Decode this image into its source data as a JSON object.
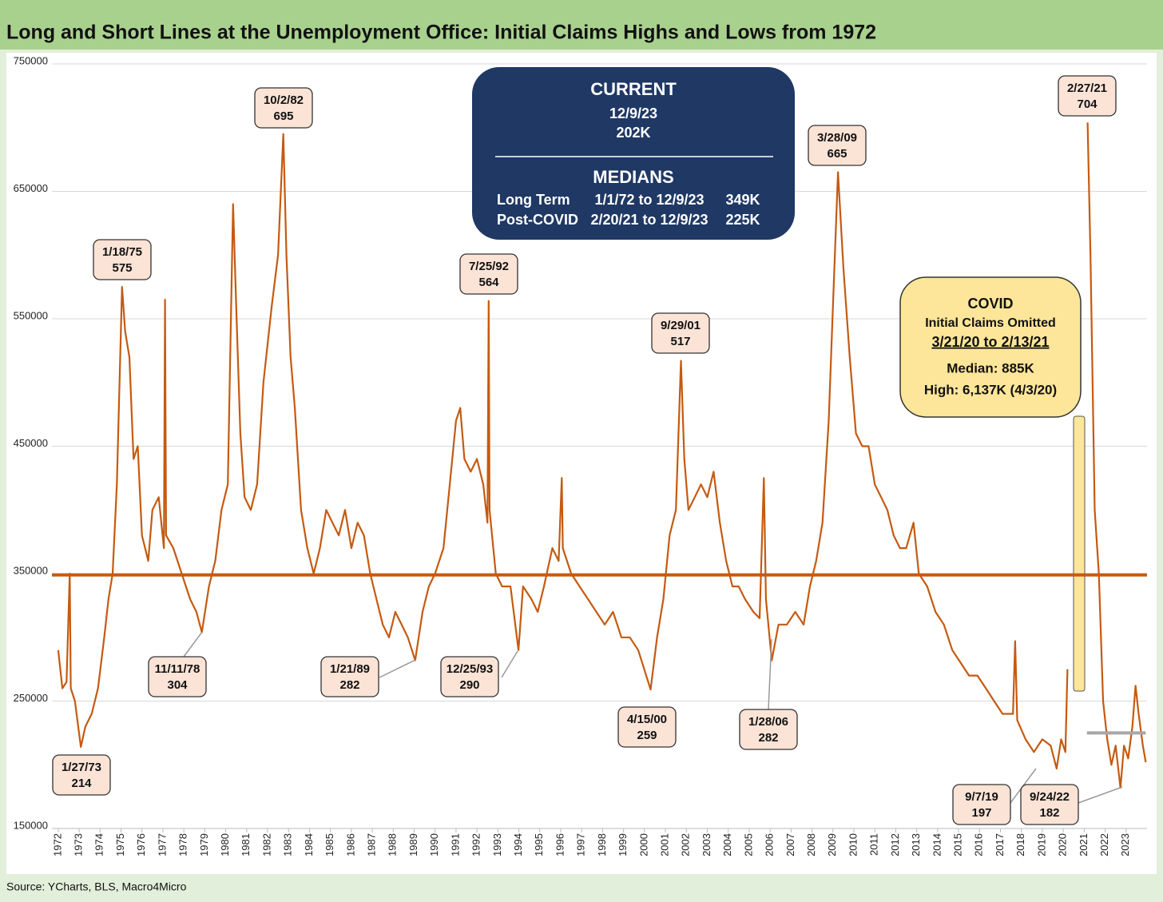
{
  "chart_data": {
    "type": "line",
    "title": "Long and Short Lines at the Unemployment Office: Initial Claims Highs and Lows from 1972",
    "source": "Source: YCharts, BLS, Macro4Micro",
    "xlim": [
      1971.7,
      2024.0
    ],
    "xticks": [
      1972,
      1973,
      1974,
      1975,
      1976,
      1977,
      1978,
      1979,
      1980,
      1981,
      1982,
      1983,
      1984,
      1985,
      1986,
      1987,
      1988,
      1989,
      1990,
      1991,
      1992,
      1993,
      1994,
      1995,
      1996,
      1997,
      1998,
      1999,
      2000,
      2001,
      2002,
      2003,
      2004,
      2005,
      2006,
      2007,
      2008,
      2009,
      2010,
      2011,
      2012,
      2013,
      2014,
      2015,
      2016,
      2017,
      2018,
      2019,
      2020,
      2021,
      2022,
      2023
    ],
    "ylim": [
      150000,
      750000
    ],
    "yticks": [
      150000,
      250000,
      350000,
      450000,
      550000,
      650000,
      750000
    ],
    "grid": true,
    "color": "#c55a11",
    "x": [
      1972.0,
      1972.2,
      1972.4,
      1972.55,
      1972.6,
      1972.8,
      1973.08,
      1973.3,
      1973.6,
      1973.9,
      1974.2,
      1974.4,
      1974.6,
      1974.8,
      1975.05,
      1975.2,
      1975.4,
      1975.6,
      1975.8,
      1976.0,
      1976.3,
      1976.5,
      1976.8,
      1977.05,
      1977.1,
      1977.15,
      1977.5,
      1977.9,
      1978.3,
      1978.6,
      1978.86,
      1979.2,
      1979.5,
      1979.8,
      1980.1,
      1980.35,
      1980.5,
      1980.7,
      1980.9,
      1981.2,
      1981.5,
      1981.8,
      1982.2,
      1982.5,
      1982.75,
      1982.9,
      1983.1,
      1983.3,
      1983.6,
      1983.9,
      1984.2,
      1984.5,
      1984.8,
      1985.1,
      1985.4,
      1985.7,
      1986.0,
      1986.3,
      1986.6,
      1986.9,
      1987.2,
      1987.5,
      1987.8,
      1988.1,
      1988.4,
      1988.7,
      1989.05,
      1989.4,
      1989.7,
      1990.0,
      1990.4,
      1990.7,
      1991.0,
      1991.2,
      1991.4,
      1991.7,
      1992.0,
      1992.3,
      1992.5,
      1992.56,
      1992.6,
      1992.9,
      1993.2,
      1993.6,
      1993.98,
      1994.2,
      1994.6,
      1994.9,
      1995.2,
      1995.6,
      1995.9,
      1996.05,
      1996.1,
      1996.5,
      1996.9,
      1997.3,
      1997.7,
      1998.1,
      1998.5,
      1998.9,
      1999.3,
      1999.7,
      2000.29,
      2000.6,
      2000.9,
      2001.2,
      2001.5,
      2001.74,
      2001.9,
      2002.1,
      2002.4,
      2002.7,
      2003.0,
      2003.3,
      2003.6,
      2003.9,
      2004.2,
      2004.5,
      2004.8,
      2005.2,
      2005.5,
      2005.7,
      2005.8,
      2006.08,
      2006.4,
      2006.8,
      2007.2,
      2007.6,
      2007.9,
      2008.2,
      2008.5,
      2008.8,
      2009.0,
      2009.24,
      2009.5,
      2009.8,
      2010.1,
      2010.4,
      2010.7,
      2011.0,
      2011.3,
      2011.6,
      2011.9,
      2012.2,
      2012.5,
      2012.85,
      2013.1,
      2013.5,
      2013.9,
      2014.3,
      2014.7,
      2015.1,
      2015.5,
      2015.9,
      2016.3,
      2016.7,
      2017.1,
      2017.6,
      2017.7,
      2017.8,
      2018.2,
      2018.6,
      2019.0,
      2019.4,
      2019.68,
      2019.9,
      2020.1,
      2020.2,
      null,
      2021.16,
      2021.3,
      2021.5,
      2021.7,
      2021.9,
      2022.1,
      2022.3,
      2022.5,
      2022.73,
      2022.9,
      2023.1,
      2023.3,
      2023.45,
      2023.6,
      2023.8,
      2023.94
    ],
    "values": [
      290000,
      260000,
      265000,
      350000,
      260000,
      250000,
      214000,
      230000,
      240000,
      260000,
      300000,
      330000,
      350000,
      420000,
      575000,
      540000,
      520000,
      440000,
      450000,
      380000,
      360000,
      400000,
      410000,
      370000,
      565000,
      380000,
      370000,
      350000,
      330000,
      320000,
      304000,
      340000,
      360000,
      400000,
      420000,
      640000,
      560000,
      460000,
      410000,
      400000,
      420000,
      500000,
      560000,
      600000,
      695000,
      600000,
      520000,
      480000,
      400000,
      370000,
      350000,
      370000,
      400000,
      390000,
      380000,
      400000,
      370000,
      390000,
      380000,
      350000,
      330000,
      310000,
      300000,
      320000,
      310000,
      300000,
      282000,
      320000,
      340000,
      350000,
      370000,
      420000,
      470000,
      480000,
      440000,
      430000,
      440000,
      420000,
      390000,
      564000,
      400000,
      350000,
      340000,
      340000,
      290000,
      340000,
      330000,
      320000,
      340000,
      370000,
      360000,
      425000,
      370000,
      350000,
      340000,
      330000,
      320000,
      310000,
      320000,
      300000,
      300000,
      290000,
      259000,
      300000,
      330000,
      380000,
      400000,
      517000,
      440000,
      400000,
      410000,
      420000,
      410000,
      430000,
      390000,
      360000,
      340000,
      340000,
      330000,
      320000,
      315000,
      425000,
      330000,
      282000,
      310000,
      310000,
      320000,
      310000,
      340000,
      360000,
      390000,
      470000,
      560000,
      665000,
      590000,
      520000,
      460000,
      450000,
      450000,
      420000,
      410000,
      400000,
      380000,
      370000,
      370000,
      390000,
      350000,
      340000,
      320000,
      310000,
      290000,
      280000,
      270000,
      270000,
      260000,
      250000,
      240000,
      240000,
      297000,
      235000,
      220000,
      210000,
      220000,
      215000,
      197000,
      220000,
      210000,
      275000,
      null,
      704000,
      600000,
      400000,
      350000,
      250000,
      220000,
      200000,
      215000,
      182000,
      215000,
      205000,
      230000,
      262000,
      240000,
      215000,
      202000
    ],
    "reference_lines": [
      {
        "value": 349000,
        "color": "#c55a11"
      },
      {
        "value": 225000,
        "color": "#a6a6a6",
        "from": 2021.13,
        "to": 2023.94
      }
    ],
    "annotations": [
      {
        "text": "1/27/73",
        "value_label": "214"
      },
      {
        "text": "1/18/75",
        "value_label": "575"
      },
      {
        "text": "11/11/78",
        "value_label": "304"
      },
      {
        "text": "10/2/82",
        "value_label": "695"
      },
      {
        "text": "1/21/89",
        "value_label": "282"
      },
      {
        "text": "7/25/92",
        "value_label": "564"
      },
      {
        "text": "12/25/93",
        "value_label": "290"
      },
      {
        "text": "4/15/00",
        "value_label": "259"
      },
      {
        "text": "9/29/01",
        "value_label": "517"
      },
      {
        "text": "1/28/06",
        "value_label": "282"
      },
      {
        "text": "3/28/09",
        "value_label": "665"
      },
      {
        "text": "9/7/19",
        "value_label": "197"
      },
      {
        "text": "9/24/22",
        "value_label": "182"
      },
      {
        "text": "2/27/21",
        "value_label": "704"
      }
    ],
    "current_box": {
      "heading": "CURRENT",
      "date": "12/9/23",
      "value": "202K",
      "medians_heading": "MEDIANS",
      "rows": [
        [
          "Long Term",
          "1/1/72 to 12/9/23",
          "349K"
        ],
        [
          "Post-COVID",
          "2/20/21 to 12/9/23",
          "225K"
        ]
      ]
    },
    "covid_box": {
      "heading": "COVID",
      "line1": "Initial Claims Omitted",
      "range": "3/21/20 to 2/13/21",
      "median": "Median: 885K",
      "high": "High: 6,137K (4/3/20)"
    }
  }
}
